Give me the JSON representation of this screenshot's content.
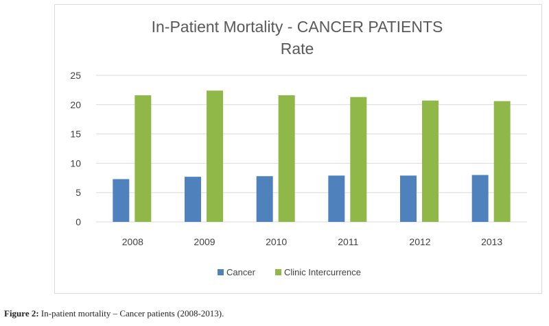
{
  "chart_data": {
    "type": "bar",
    "title_line1": "In-Patient Mortality -  CANCER PATIENTS",
    "title_line2": "Rate",
    "categories": [
      "2008",
      "2009",
      "2010",
      "2011",
      "2012",
      "2013"
    ],
    "series": [
      {
        "name": "Cancer",
        "color": "#4f81bd",
        "values": [
          7.3,
          7.7,
          7.8,
          7.9,
          7.9,
          8.0
        ]
      },
      {
        "name": "Clinic Intercurrence",
        "color": "#8fb849",
        "values": [
          21.6,
          22.4,
          21.6,
          21.3,
          20.7,
          20.6
        ]
      }
    ],
    "yticks": [
      "0",
      "5",
      "10",
      "15",
      "20",
      "25"
    ],
    "ylim": [
      0,
      25
    ],
    "grid": true,
    "legend_position": "bottom",
    "xlabel": "",
    "ylabel": ""
  },
  "caption": {
    "label": "Figure 2:",
    "text": " In-patient mortality – Cancer patients (2008-2013)."
  },
  "colors": {
    "grid": "#d9d9d9",
    "axis_text": "#404040",
    "title": "#595959"
  }
}
